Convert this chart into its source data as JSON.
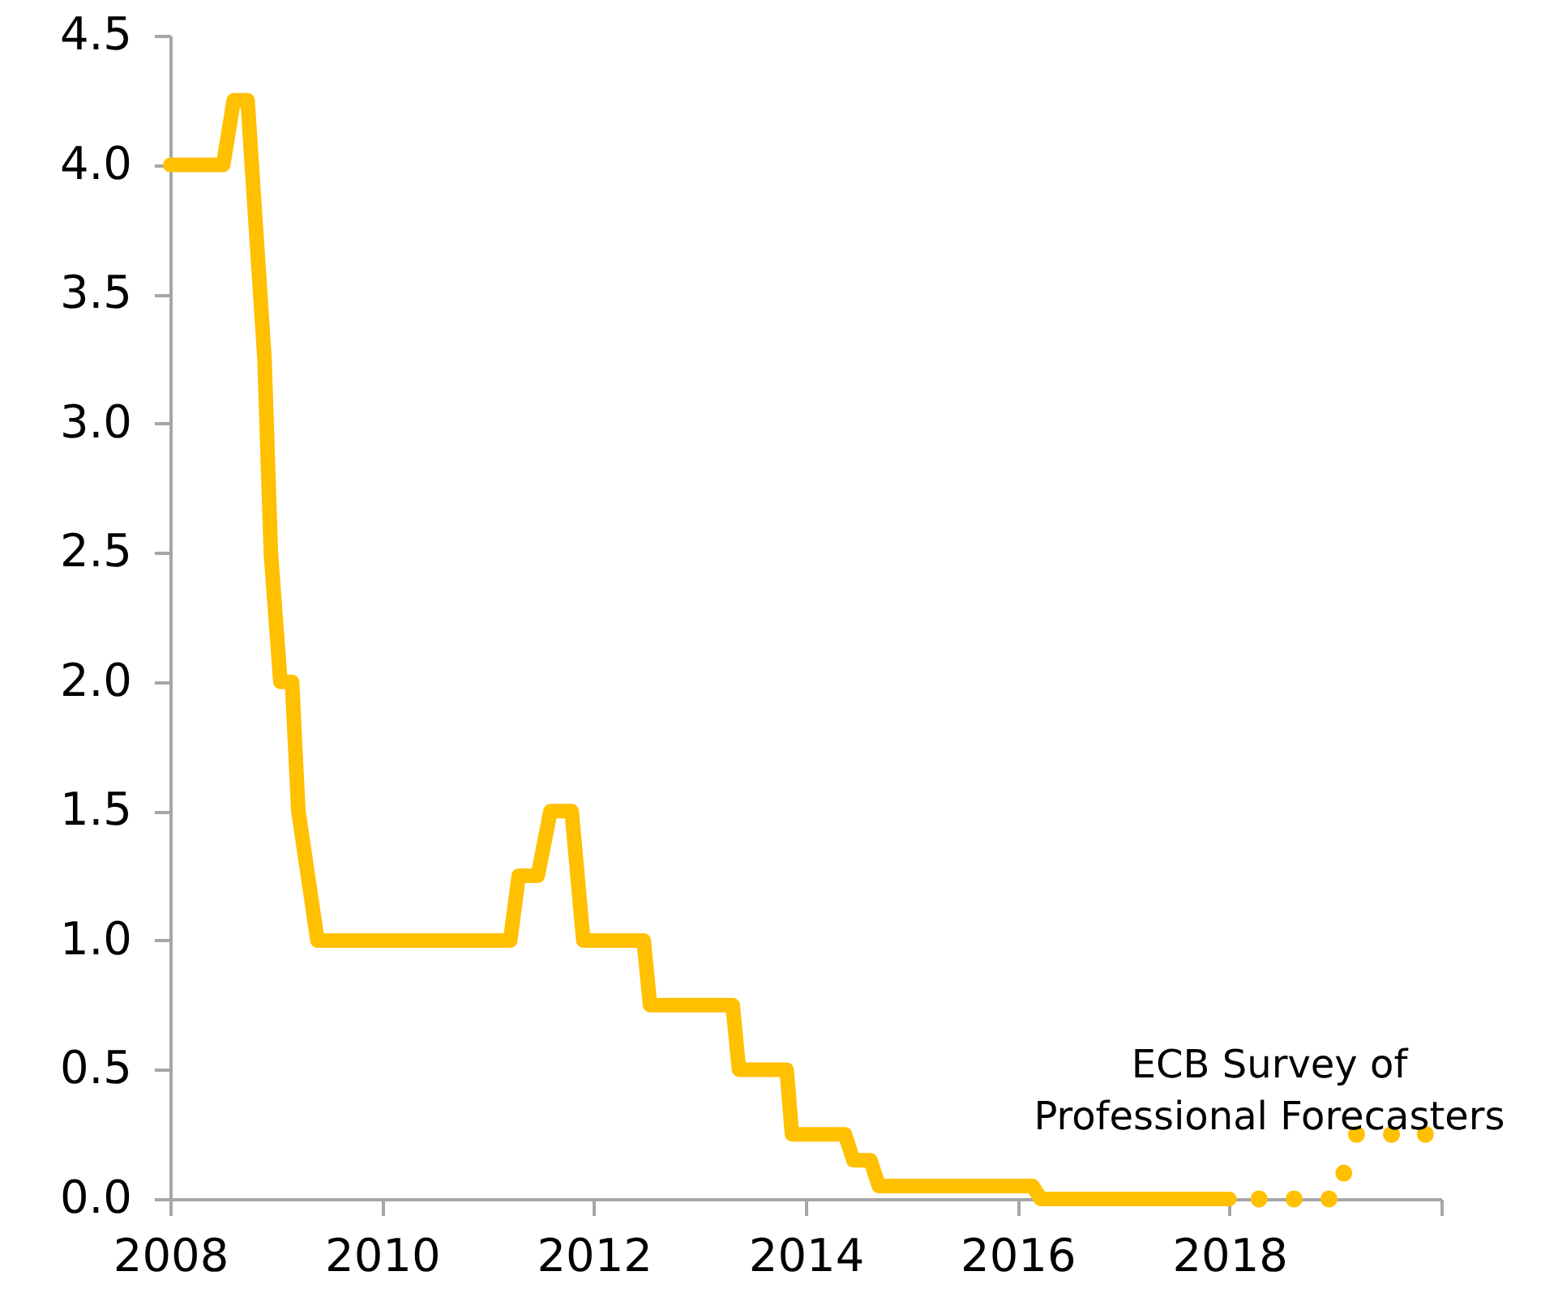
{
  "chart_data": {
    "type": "line",
    "xlim": [
      2008,
      2020
    ],
    "ylim": [
      0,
      4.5
    ],
    "xticks": [
      2008,
      2010,
      2012,
      2014,
      2016,
      2018,
      {
        "value": 2020,
        "label": null
      }
    ],
    "yticks": [
      {
        "value": 0,
        "label": "0.0"
      },
      {
        "value": 0.5,
        "label": "0.5"
      },
      {
        "value": 1,
        "label": "1.0"
      },
      {
        "value": 1.5,
        "label": "1.5"
      },
      {
        "value": 2,
        "label": "2.0"
      },
      {
        "value": 2.5,
        "label": "2.5"
      },
      {
        "value": 3,
        "label": "3.0"
      },
      {
        "value": 3.5,
        "label": "3.5"
      },
      {
        "value": 4,
        "label": "4.0"
      },
      {
        "value": 4.5,
        "label": "4.5"
      }
    ],
    "grid": false,
    "annotations": [
      "ECB Survey of\nProfessional Forecasters"
    ],
    "series": [
      {
        "color": "#ffc000",
        "line_style": "solid",
        "x": [
          2008.0,
          2008.5,
          2008.6,
          2008.73,
          2008.89,
          2008.95,
          2009.04,
          2009.15,
          2009.21,
          2009.39,
          2011.21,
          2011.29,
          2011.47,
          2011.59,
          2011.79,
          2011.9,
          2012.47,
          2012.53,
          2013.31,
          2013.37,
          2013.82,
          2013.87,
          2014.37,
          2014.45,
          2014.61,
          2014.69,
          2016.14,
          2016.22,
          2018.0
        ],
        "values": [
          4.0,
          4.0,
          4.25,
          4.25,
          3.25,
          2.5,
          2.0,
          2.0,
          1.5,
          1.0,
          1.0,
          1.25,
          1.25,
          1.5,
          1.5,
          1.0,
          1.0,
          0.75,
          0.75,
          0.5,
          0.5,
          0.25,
          0.25,
          0.15,
          0.15,
          0.05,
          0.05,
          0.0,
          0.0
        ]
      },
      {
        "type": "scatter",
        "color": "#ffc000",
        "x": [
          2018.28,
          2018.61,
          2018.94,
          2019.08,
          2019.2,
          2019.53,
          2019.85
        ],
        "values": [
          0.0,
          0.0,
          0.0,
          0.1,
          0.25,
          0.25,
          0.25
        ]
      }
    ]
  }
}
